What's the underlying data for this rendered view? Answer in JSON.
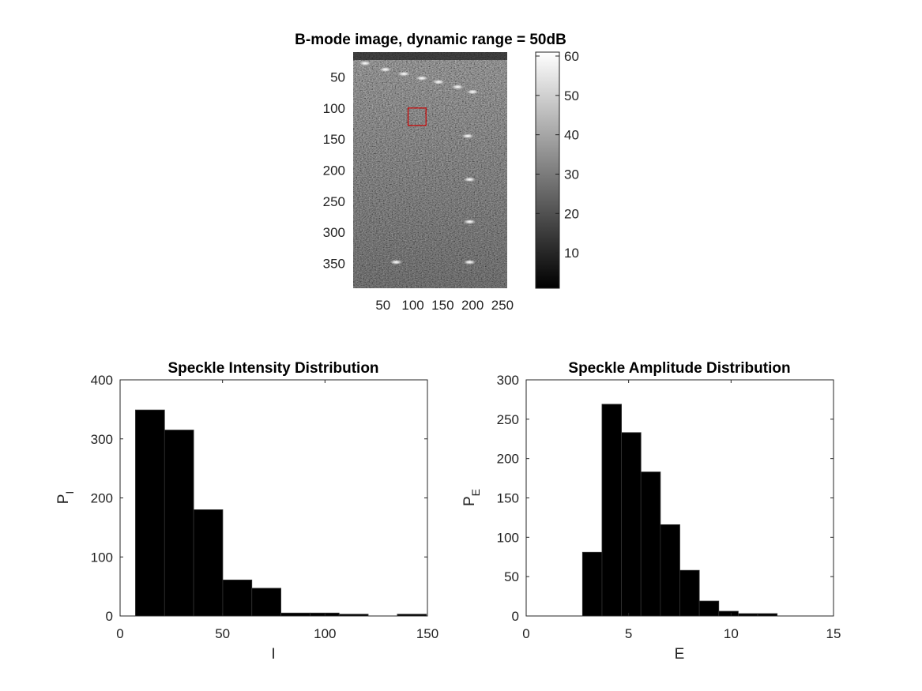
{
  "figure": {
    "panels": [
      {
        "id": "bmode",
        "title": "B-mode image, dynamic range = 50dB",
        "y_ticks": [
          "50",
          "100",
          "150",
          "200",
          "250",
          "300",
          "350"
        ],
        "x_ticks": [
          "50",
          "100",
          "150",
          "200",
          "250"
        ],
        "colorbar_ticks": [
          "10",
          "20",
          "30",
          "40",
          "50",
          "60"
        ],
        "colormap": "gray",
        "roi_color": "#cc0000"
      },
      {
        "id": "intensity",
        "title": "Speckle Intensity Distribution",
        "xlabel": "I",
        "ylabel_main": "P",
        "ylabel_sub": "I",
        "x_ticks": [
          "0",
          "50",
          "100",
          "150"
        ],
        "y_ticks": [
          "0",
          "100",
          "200",
          "300",
          "400"
        ]
      },
      {
        "id": "amplitude",
        "title": "Speckle Amplitude Distribution",
        "xlabel": "E",
        "ylabel_main": "P",
        "ylabel_sub": "E",
        "x_ticks": [
          "0",
          "5",
          "10",
          "15"
        ],
        "y_ticks": [
          "0",
          "50",
          "100",
          "150",
          "200",
          "250",
          "300"
        ]
      }
    ]
  },
  "chart_data": [
    {
      "type": "heatmap",
      "title": "B-mode image, dynamic range = 50dB",
      "x_ticks": [
        50,
        100,
        150,
        200,
        250
      ],
      "y_ticks": [
        50,
        100,
        150,
        200,
        250,
        300,
        350
      ],
      "xlim": [
        0,
        258
      ],
      "ylim": [
        10,
        390
      ],
      "y_direction": "reversed",
      "colorbar": {
        "range": [
          1,
          61
        ],
        "ticks": [
          10,
          20,
          30,
          40,
          50,
          60
        ],
        "colormap": "gray"
      },
      "bright_points": [
        {
          "x": 20,
          "y": 28
        },
        {
          "x": 54,
          "y": 38
        },
        {
          "x": 85,
          "y": 45
        },
        {
          "x": 115,
          "y": 52
        },
        {
          "x": 143,
          "y": 58
        },
        {
          "x": 175,
          "y": 66
        },
        {
          "x": 200,
          "y": 74
        },
        {
          "x": 192,
          "y": 145
        },
        {
          "x": 195,
          "y": 215
        },
        {
          "x": 195,
          "y": 283
        },
        {
          "x": 72,
          "y": 348
        },
        {
          "x": 195,
          "y": 348
        }
      ],
      "roi": {
        "x": [
          92,
          122
        ],
        "y": [
          100,
          128
        ],
        "color": "#cc0000"
      }
    },
    {
      "type": "bar",
      "title": "Speckle Intensity Distribution",
      "xlabel": "I",
      "ylabel": "P_I",
      "xlim": [
        0,
        150
      ],
      "ylim": [
        0,
        400
      ],
      "grid": false,
      "bin_edges": [
        7.5,
        21.7,
        35.9,
        50.1,
        64.3,
        78.5,
        92.7,
        106.9,
        121.1,
        135.3,
        149.5
      ],
      "values": [
        349,
        315,
        180,
        61,
        47,
        5,
        5,
        3,
        0,
        3
      ],
      "color": "#000000"
    },
    {
      "type": "bar",
      "title": "Speckle Amplitude Distribution",
      "xlabel": "E",
      "ylabel": "P_E",
      "xlim": [
        0,
        15
      ],
      "ylim": [
        0,
        300
      ],
      "grid": false,
      "bin_edges": [
        2.75,
        3.7,
        4.65,
        5.6,
        6.55,
        7.5,
        8.45,
        9.4,
        10.35,
        11.3,
        12.25
      ],
      "values": [
        81,
        269,
        233,
        183,
        116,
        58,
        19,
        6,
        3,
        3
      ],
      "color": "#000000"
    }
  ]
}
